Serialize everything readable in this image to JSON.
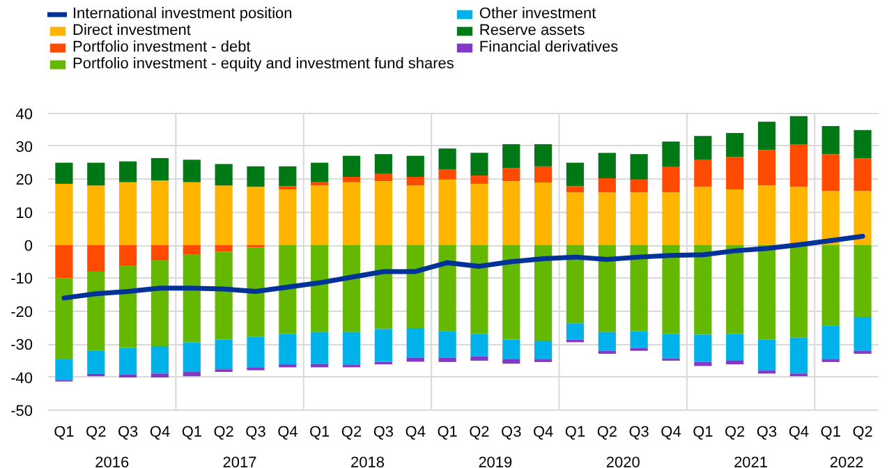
{
  "chart_data": {
    "type": "bar",
    "stacked": true,
    "categories": [
      "Q1",
      "Q2",
      "Q3",
      "Q4",
      "Q1",
      "Q2",
      "Q3",
      "Q4",
      "Q1",
      "Q2",
      "Q3",
      "Q4",
      "Q1",
      "Q2",
      "Q3",
      "Q4",
      "Q1",
      "Q2",
      "Q3",
      "Q4",
      "Q1",
      "Q2",
      "Q3",
      "Q4",
      "Q1",
      "Q2"
    ],
    "annotations": [
      "2016",
      "2017",
      "2018",
      "2019",
      "2020",
      "2021",
      "2022"
    ],
    "series": [
      {
        "name": "International investment position",
        "type": "line",
        "color": "#003299",
        "values": [
          -16,
          -14.7,
          -14,
          -13,
          -13,
          -13.3,
          -14,
          -12.7,
          -11.4,
          -9.7,
          -8,
          -8,
          -5.3,
          -6.4,
          -5,
          -4.1,
          -3.6,
          -4.3,
          -3.6,
          -3.1,
          -2.9,
          -1.7,
          -1.0,
          0.1,
          1.4,
          2.7
        ]
      },
      {
        "name": "Direct investment",
        "color": "#ffb400",
        "values": [
          18.6,
          18.1,
          19.1,
          19.6,
          19.1,
          18.1,
          17.7,
          16.9,
          18.1,
          19.1,
          19.4,
          18.1,
          19.9,
          18.6,
          19.4,
          19,
          16,
          16,
          16,
          16,
          17.7,
          16.9,
          18.1,
          17.7,
          16.4,
          16.4
        ]
      },
      {
        "name": "Portfolio investment - debt",
        "color": "#ff4b00",
        "values": [
          -10,
          -8,
          -6.3,
          -4.6,
          -2.9,
          -2,
          -0.7,
          1.0,
          1.0,
          1.6,
          2.2,
          2.6,
          3.0,
          2.5,
          4.0,
          4.9,
          1.9,
          4.3,
          3.9,
          7.7,
          8.2,
          9.8,
          10.8,
          12.9,
          11.2,
          9.9
        ]
      },
      {
        "name": "Portfolio investment - equity and investment fund shares",
        "color": "#65b800",
        "values": [
          -24.6,
          -24,
          -24.8,
          -26,
          -26.5,
          -26.6,
          -27,
          -26.9,
          -26.3,
          -26.3,
          -25.4,
          -25.1,
          -26,
          -26.9,
          -28.6,
          -28.9,
          -23.7,
          -26.3,
          -26,
          -26.9,
          -27.1,
          -26.9,
          -28.6,
          -28,
          -24.3,
          -21.7
        ]
      },
      {
        "name": "Other investment",
        "color": "#00b1ea",
        "values": [
          -6.3,
          -7,
          -8,
          -8.3,
          -9,
          -9,
          -9.3,
          -9.2,
          -9.7,
          -10,
          -10,
          -9,
          -8.1,
          -6.8,
          -6,
          -5.7,
          -4.9,
          -5.7,
          -5.1,
          -7.4,
          -8.3,
          -8.1,
          -9.4,
          -10.9,
          -10.3,
          -10.3
        ]
      },
      {
        "name": "Reserve assets",
        "color": "#007816",
        "values": [
          6.4,
          6.9,
          6.3,
          6.8,
          6.8,
          6.5,
          6.2,
          6.0,
          5.9,
          6.4,
          6,
          6.4,
          6.4,
          6.9,
          7.2,
          6.7,
          7.1,
          7.7,
          7.7,
          7.7,
          7.2,
          7.3,
          8.5,
          8.5,
          8.5,
          8.6
        ]
      },
      {
        "name": "Financial derivatives",
        "color": "#8139c6",
        "values": [
          -0.4,
          -0.7,
          -1.0,
          -1.2,
          -1.3,
          -0.8,
          -0.9,
          -0.9,
          -1.0,
          -0.7,
          -0.7,
          -1.2,
          -1.3,
          -1.3,
          -1.3,
          -0.8,
          -0.8,
          -0.9,
          -0.9,
          -0.7,
          -1.2,
          -1.1,
          -0.9,
          -0.8,
          -0.8,
          -0.9
        ]
      }
    ],
    "ylim": [
      -50,
      40
    ],
    "yticks": [
      -50,
      -40,
      -30,
      -20,
      -10,
      0,
      10,
      20,
      30,
      40
    ],
    "grid": "y",
    "legend": "top"
  }
}
